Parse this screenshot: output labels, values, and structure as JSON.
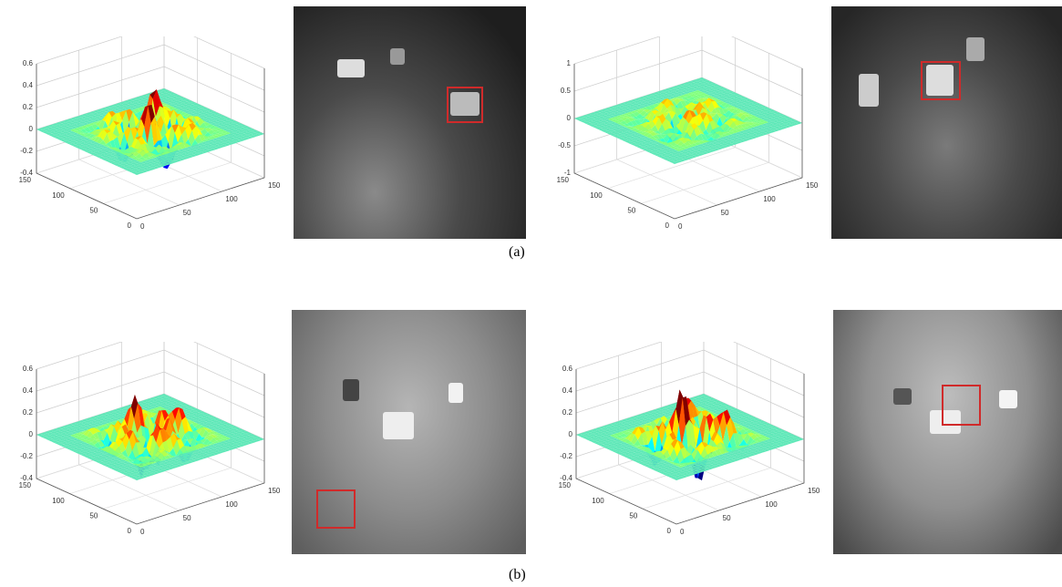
{
  "panels": [
    {
      "label": "(a)",
      "plots": [
        {
          "z_ticks": [
            "0.6",
            "0.4",
            "0.2",
            "0",
            "-0.2",
            "-0.4"
          ],
          "y_ticks": [
            "150",
            "100",
            "50",
            "0"
          ],
          "x_ticks": [
            "0",
            "50",
            "100",
            "150"
          ]
        },
        {
          "z_ticks": [
            "1",
            "0.5",
            "0",
            "-0.5",
            "-1"
          ],
          "y_ticks": [
            "150",
            "100",
            "50",
            "0"
          ],
          "x_ticks": [
            "0",
            "50",
            "100",
            "150"
          ]
        }
      ]
    },
    {
      "label": "(b)",
      "plots": [
        {
          "z_ticks": [
            "0.6",
            "0.4",
            "0.2",
            "0",
            "-0.2",
            "-0.4"
          ],
          "y_ticks": [
            "150",
            "100",
            "50",
            "0"
          ],
          "x_ticks": [
            "0",
            "50",
            "100",
            "150"
          ]
        },
        {
          "z_ticks": [
            "0.6",
            "0.4",
            "0.2",
            "0",
            "-0.2",
            "-0.4"
          ],
          "y_ticks": [
            "150",
            "100",
            "50",
            "0"
          ],
          "x_ticks": [
            "0",
            "50",
            "100",
            "150"
          ]
        }
      ]
    }
  ]
}
